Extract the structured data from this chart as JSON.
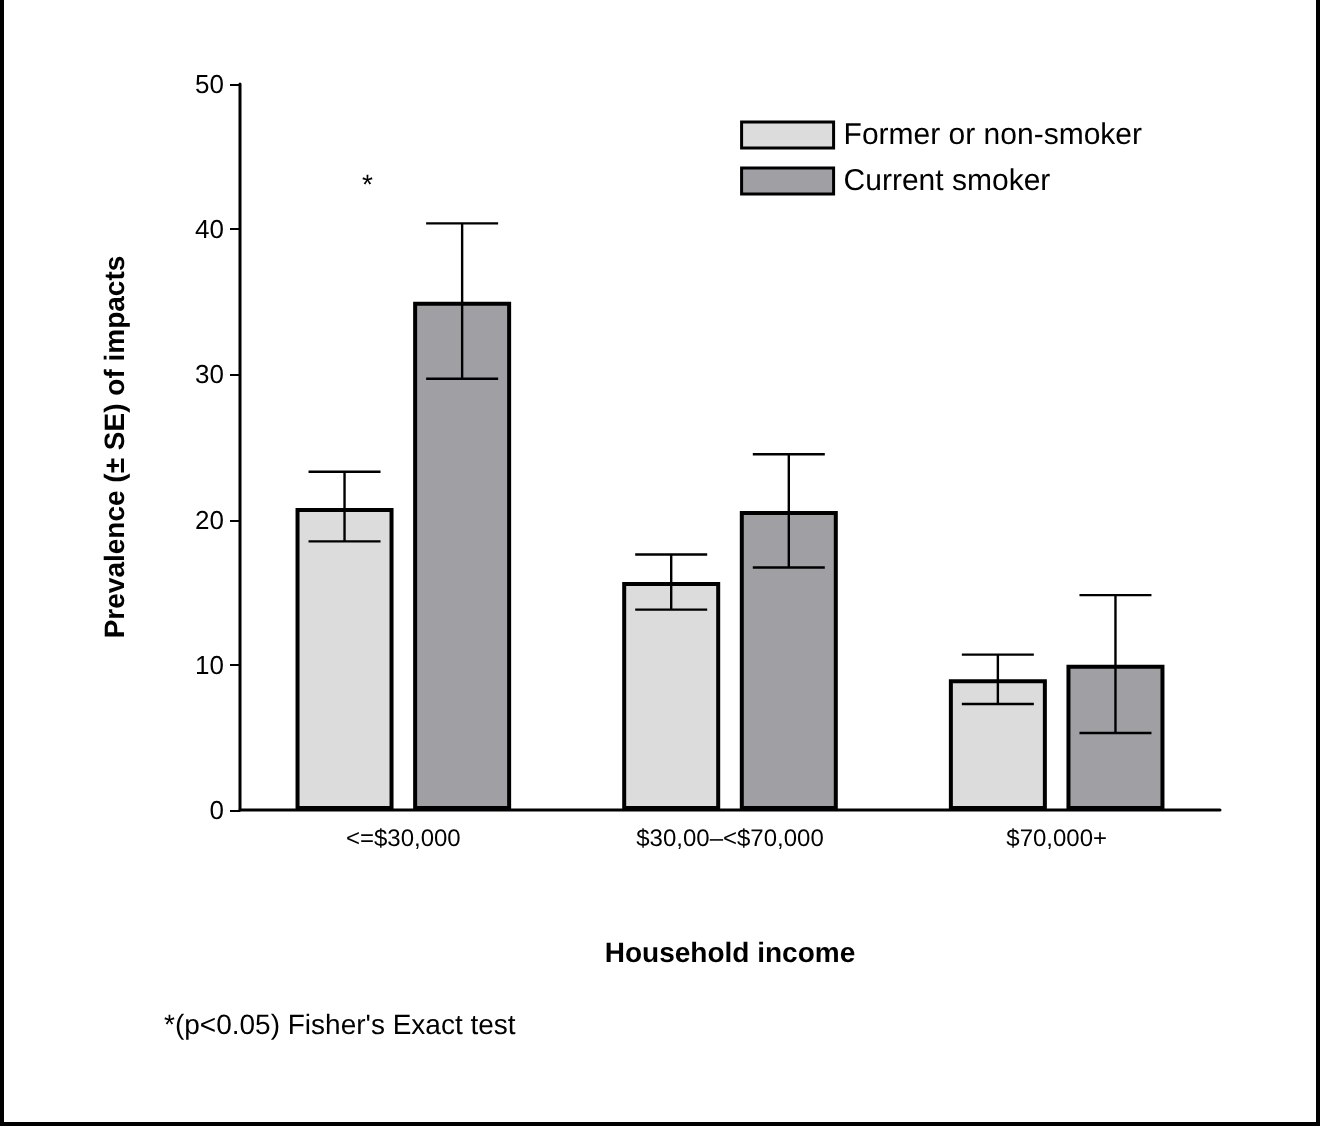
{
  "chart_data": {
    "type": "bar",
    "xlabel": "Household income",
    "ylabel": "Prevalence (± SE) of impacts",
    "categories": [
      "<=$30,000",
      "$30,00–<$70,000",
      "$70,000+"
    ],
    "series": [
      {
        "name": "Former or non-smoker",
        "color": "#dcdcdc",
        "values": [
          20.8,
          15.7,
          9.0
        ],
        "errors": [
          [
            18.5,
            23.3
          ],
          [
            13.8,
            17.6
          ],
          [
            7.3,
            10.7
          ]
        ]
      },
      {
        "name": "Current smoker",
        "color": "#a0a0a4",
        "values": [
          35.0,
          20.6,
          10.0
        ],
        "errors": [
          [
            29.7,
            40.4
          ],
          [
            16.7,
            24.5
          ],
          [
            5.3,
            14.8
          ]
        ]
      }
    ],
    "ylim": [
      0,
      50
    ],
    "yticks": [
      0,
      10,
      20,
      30,
      40,
      50
    ],
    "grid": false,
    "legend": "top right",
    "annotations": [
      "*",
      "*(p<0.05) Fisher's Exact test"
    ]
  }
}
